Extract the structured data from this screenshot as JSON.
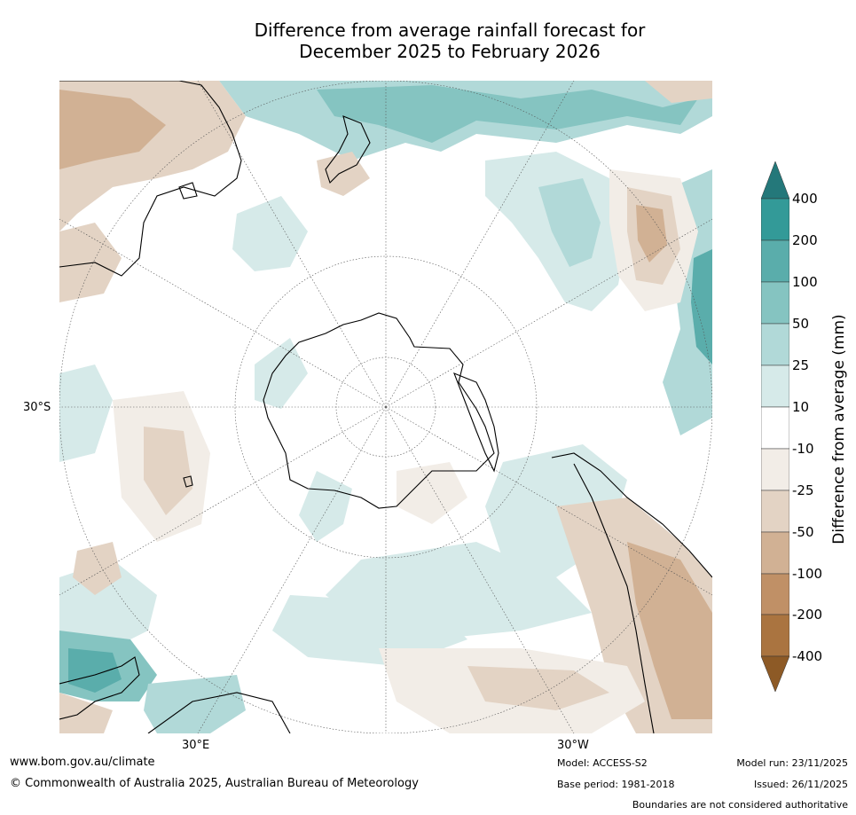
{
  "title": {
    "line1": "Difference from average rainfall forecast for",
    "line2": "December 2025 to February 2026"
  },
  "map": {
    "projection": "south-polar stereographic",
    "labels": {
      "lat_left": "30°S",
      "lon_bottom_left": "30°E",
      "lon_bottom_right": "30°W"
    },
    "features": [
      "Antarctica",
      "Australia",
      "New Zealand",
      "South America",
      "Southern Africa",
      "Madagascar"
    ]
  },
  "colorbar": {
    "title": "Difference from average (mm)",
    "ticks": [
      "400",
      "200",
      "100",
      "50",
      "25",
      "10",
      "-10",
      "-25",
      "-50",
      "-100",
      "-200",
      "-400"
    ],
    "colors": {
      "over_400": "#24787a",
      "200_400": "#339a98",
      "100_200": "#5aadab",
      "50_100": "#85c4c1",
      "25_50": "#b1d9d8",
      "10_25": "#d6eae9",
      "neutral": "#ffffff",
      "m10_m25": "#f2ede7",
      "m25_m50": "#e3d3c4",
      "m50_m100": "#d1b194",
      "m100_m200": "#c09066",
      "m200_m400": "#aa7440",
      "under_m400": "#8d5a26"
    }
  },
  "footer": {
    "website": "www.bom.gov.au/climate",
    "copyright": "© Commonwealth of Australia 2025, Australian Bureau of Meteorology",
    "model": "Model: ACCESS-S2",
    "base_period": "Base period: 1981-2018",
    "model_run": "Model run: 23/11/2025",
    "issued": "Issued: 26/11/2025",
    "disclaimer": "Boundaries are not considered authoritative"
  }
}
